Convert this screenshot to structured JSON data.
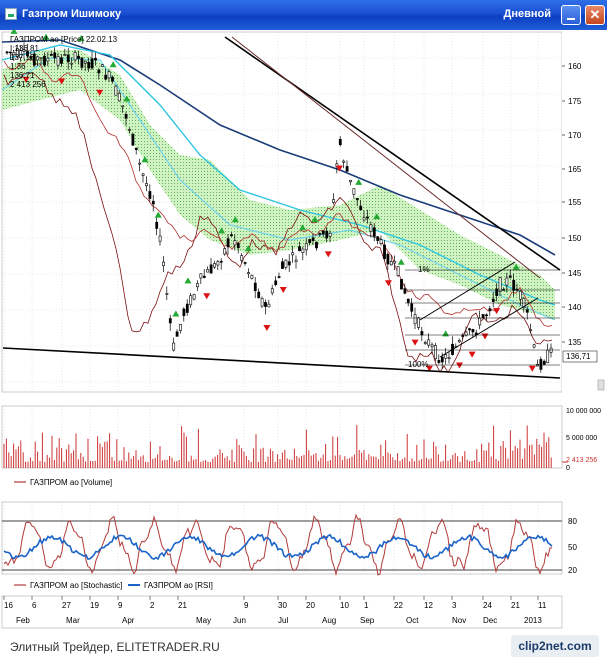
{
  "window": {
    "title": "Газпром Ишимоку",
    "timeframe": "Дневной",
    "close_symbol": "✕"
  },
  "main_chart": {
    "price_axis": [
      "160",
      "155",
      "150",
      "145",
      "140",
      "135"
    ],
    "price_axis_upper": [
      "175",
      "170",
      "165"
    ],
    "current_price": "136,71",
    "legend": [
      "ГАЗПРОМ ао [Price] 22.02.13",
      "I:136,81",
      "137,13",
      "1:36",
      "136,71",
      "2 413 256"
    ],
    "labels": {
      "top_level": "1%",
      "bottom_level": "100%"
    }
  },
  "volume_panel": {
    "axis": [
      "10 000 000",
      "5 000 000",
      "2 413 256",
      "0"
    ],
    "legend": "ГАЗПРОМ ао [Volume]"
  },
  "osc_panel": {
    "axis": [
      "80",
      "50",
      "20"
    ],
    "legend_stoch": "ГАЗПРОМ ао [Stochastic]",
    "legend_rsi": "ГАЗПРОМ ао [RSI]"
  },
  "x_axis": {
    "days": [
      "16",
      "6",
      "27",
      "19",
      "9",
      "2",
      "21",
      "9",
      "30",
      "20",
      "10",
      "1",
      "22",
      "12",
      "3",
      "24",
      "21",
      "11"
    ],
    "months": [
      "Feb",
      "Mar",
      "Apr",
      "May",
      "Jun",
      "Jul",
      "Aug",
      "Sep",
      "Oct",
      "Nov",
      "Dec",
      "2013",
      "Feb"
    ]
  },
  "footer": {
    "watermark": "Элитный Трейдер, ELITETRADER.RU",
    "logo": "clip2net.com"
  },
  "colors": {
    "candle": "#000000",
    "ma_navy": "#1a3d7a",
    "ma_cyan": "#2fc6e0",
    "ma_light": "#7ed9ee",
    "cloud": "#9be28c",
    "tenkan": "#7a1010",
    "kijun": "#b23030",
    "buy": "#22aa33",
    "sell": "#dd1111",
    "stoch": "#b23a3a",
    "rsi": "#1a64c8",
    "vol_bar": "#cc3333"
  }
}
